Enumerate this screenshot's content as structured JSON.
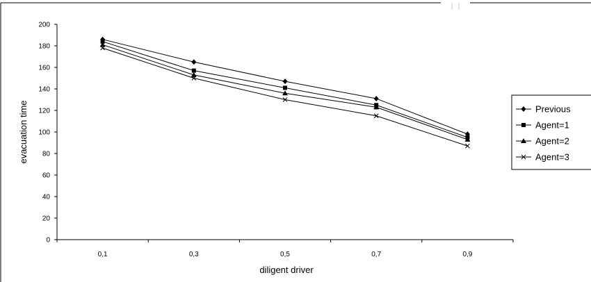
{
  "chart_data": {
    "type": "line",
    "title": "",
    "xlabel": "diligent driver",
    "ylabel": "evacuation time",
    "categories": [
      "0,1",
      "0,3",
      "0,5",
      "0,7",
      "0,9"
    ],
    "ylim": [
      0,
      200
    ],
    "yticks": [
      0,
      20,
      40,
      60,
      80,
      100,
      120,
      140,
      160,
      180,
      200
    ],
    "grid": false,
    "legend_position": "right",
    "series": [
      {
        "name": "Previous",
        "marker": "diamond",
        "values": [
          186,
          165,
          147,
          131,
          98
        ]
      },
      {
        "name": "Agent=1",
        "marker": "square",
        "values": [
          184,
          157,
          141,
          125,
          95
        ]
      },
      {
        "name": "Agent=2",
        "marker": "triangle",
        "values": [
          181,
          153,
          136,
          123,
          93
        ]
      },
      {
        "name": "Agent=3",
        "marker": "plus",
        "values": [
          178,
          150,
          130,
          115,
          87
        ]
      }
    ]
  }
}
